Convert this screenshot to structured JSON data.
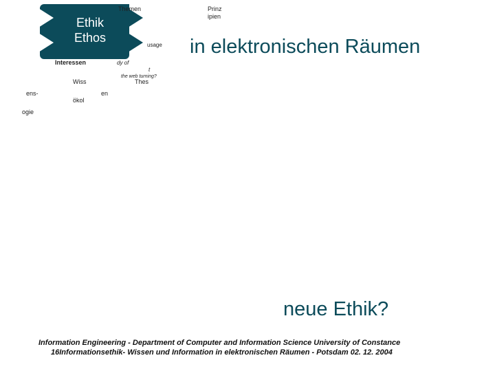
{
  "colors": {
    "nav_fill": "#0c4b5a",
    "accent": "#0c4b5a",
    "text": "#111111",
    "bg": "#ffffff"
  },
  "nav": {
    "line1": "Ethik",
    "line2": "Ethos"
  },
  "tags": {
    "themen": "Themen",
    "prinzipien": "Prinz ipien",
    "usage": "usage",
    "interessen": "Interessen",
    "dyof": "dy of",
    "t": "t",
    "ist": "the web turning?",
    "wiss": "Wiss",
    "thes": "Thes",
    "ens": "ens-",
    "en": "en",
    "okol": "ökol",
    "ogie": "ogie"
  },
  "heading_right": "in elektronischen Räumen",
  "question": "neue Ethik?",
  "footer": {
    "line1": "Information Engineering - Department of Computer and Information Science University of Constance",
    "pagenum": "16",
    "line2": "Informationsethik- Wissen und Information in elektronischen Räumen -  Potsdam 02. 12. 2004"
  }
}
